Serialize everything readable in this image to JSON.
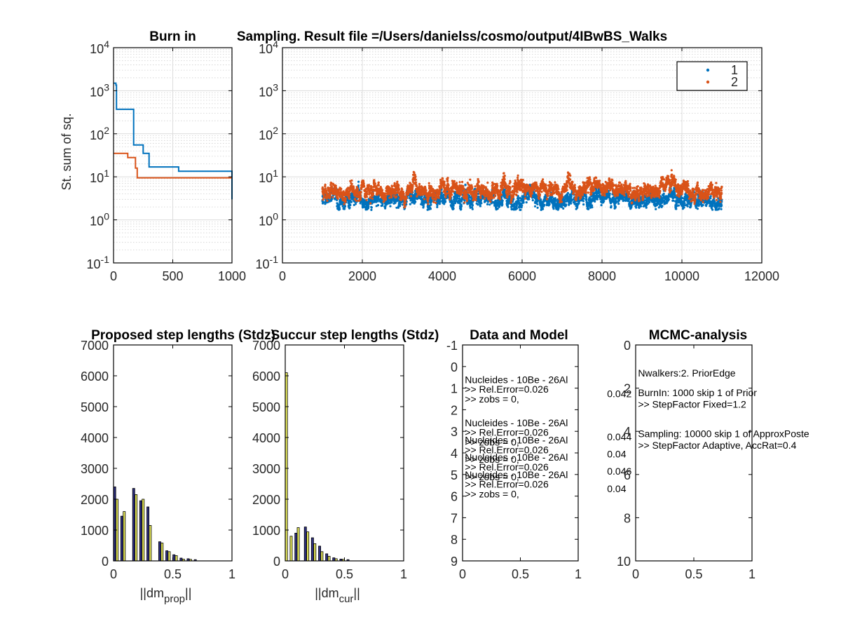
{
  "chart_data": [
    {
      "type": "line",
      "title": "Burn in",
      "ylabel": "St. sum of sq.",
      "xlim": [
        0,
        1000
      ],
      "ylim": [
        0.1,
        10000
      ],
      "yscale": "log",
      "grid": true,
      "x_ticks": [
        "0",
        "500",
        "1000"
      ],
      "y_ticks": [
        {
          "base": "10",
          "exp": "-1"
        },
        {
          "base": "10",
          "exp": "0"
        },
        {
          "base": "10",
          "exp": "1"
        },
        {
          "base": "10",
          "exp": "2"
        },
        {
          "base": "10",
          "exp": "3"
        },
        {
          "base": "10",
          "exp": "4"
        }
      ],
      "series": [
        {
          "color": "#0072BD",
          "points": [
            [
              0,
              1500
            ],
            [
              20,
              1500
            ],
            [
              20,
              1350
            ],
            [
              25,
              1350
            ],
            [
              25,
              370
            ],
            [
              170,
              370
            ],
            [
              170,
              55
            ],
            [
              250,
              55
            ],
            [
              250,
              35
            ],
            [
              300,
              35
            ],
            [
              300,
              17
            ],
            [
              550,
              17
            ],
            [
              550,
              13.5
            ],
            [
              1000,
              13.5
            ],
            [
              1000,
              3
            ]
          ]
        },
        {
          "color": "#D95319",
          "points": [
            [
              0,
              35
            ],
            [
              120,
              35
            ],
            [
              120,
              28
            ],
            [
              185,
              28
            ],
            [
              185,
              16
            ],
            [
              200,
              16
            ],
            [
              200,
              9.5
            ],
            [
              1000,
              9.5
            ]
          ]
        }
      ]
    },
    {
      "type": "scatter",
      "title": "Sampling. Result file =/Users/danielss/cosmo/output/4IBwBS_Walks",
      "xlim": [
        0,
        12000
      ],
      "ylim": [
        0.1,
        10000
      ],
      "yscale": "log",
      "grid": true,
      "legend": "top-right",
      "x_ticks": [
        "0",
        "2000",
        "4000",
        "6000",
        "8000",
        "10000",
        "12000"
      ],
      "y_ticks": [
        {
          "base": "10",
          "exp": "-1"
        },
        {
          "base": "10",
          "exp": "0"
        },
        {
          "base": "10",
          "exp": "1"
        },
        {
          "base": "10",
          "exp": "2"
        },
        {
          "base": "10",
          "exp": "3"
        },
        {
          "base": "10",
          "exp": "4"
        }
      ],
      "x_range": [
        1000,
        11000
      ],
      "series": [
        {
          "name": "1",
          "color": "#0072BD",
          "center_anchors": [
            [
              1000,
              3.0
            ],
            [
              1500,
              2.9
            ],
            [
              2000,
              3.0
            ],
            [
              2500,
              2.8
            ],
            [
              3000,
              2.9
            ],
            [
              3500,
              3.5
            ],
            [
              4000,
              3.3
            ],
            [
              4500,
              3.1
            ],
            [
              5000,
              3.0
            ],
            [
              5500,
              3.2
            ],
            [
              6000,
              3.0
            ],
            [
              6500,
              3.0
            ],
            [
              7000,
              3.3
            ],
            [
              7500,
              3.1
            ],
            [
              8000,
              3.4
            ],
            [
              8500,
              3.0
            ],
            [
              9000,
              3.2
            ],
            [
              9500,
              2.9
            ],
            [
              10000,
              3.2
            ],
            [
              10500,
              3.0
            ],
            [
              11000,
              3.0
            ]
          ],
          "spread_log10": 0.17,
          "max_y": 17
        },
        {
          "name": "2",
          "color": "#D95319",
          "center_anchors": [
            [
              1000,
              5.0
            ],
            [
              1500,
              4.8
            ],
            [
              2000,
              4.5
            ],
            [
              2500,
              3.8
            ],
            [
              3000,
              4.4
            ],
            [
              3500,
              4.8
            ],
            [
              4000,
              5.0
            ],
            [
              4500,
              4.3
            ],
            [
              5000,
              4.5
            ],
            [
              5500,
              5.0
            ],
            [
              6000,
              6.5
            ],
            [
              6500,
              6.0
            ],
            [
              7000,
              4.5
            ],
            [
              7500,
              4.6
            ],
            [
              8000,
              5.5
            ],
            [
              8500,
              4.8
            ],
            [
              9000,
              4.7
            ],
            [
              9500,
              5.8
            ],
            [
              10000,
              5.0
            ],
            [
              10500,
              4.3
            ],
            [
              11000,
              4.5
            ]
          ],
          "spread_log10": 0.16,
          "max_y": 22
        }
      ]
    },
    {
      "type": "bar",
      "title": "Proposed step lengths (Stdz)",
      "xlabel_main": "||dm",
      "xlabel_sub": "prop",
      "xlabel_end": "||",
      "xlim": [
        0,
        1
      ],
      "ylim": [
        0,
        7000
      ],
      "x_ticks": [
        "0",
        "0.5",
        "1"
      ],
      "y_ticks": [
        "0",
        "1000",
        "2000",
        "3000",
        "4000",
        "5000",
        "6000",
        "7000"
      ],
      "bin_width": 0.02,
      "bin_centers": [
        0.01,
        0.03,
        0.05,
        0.07,
        0.09,
        0.11,
        0.13,
        0.15,
        0.17,
        0.19,
        0.21,
        0.23,
        0.25,
        0.27,
        0.29,
        0.31,
        0.33,
        0.35,
        0.37,
        0.39,
        0.41,
        0.43,
        0.45,
        0.47,
        0.49,
        0.51,
        0.53,
        0.55,
        0.57,
        0.59,
        0.61,
        0.63,
        0.65,
        0.67,
        0.69
      ],
      "series": [
        {
          "color": "#2D2F7E",
          "values": [
            2400,
            0,
            0,
            1450,
            0,
            0,
            0,
            0,
            2350,
            0,
            0,
            1950,
            0,
            0,
            1750,
            0,
            0,
            0,
            0,
            620,
            0,
            0,
            330,
            0,
            0,
            200,
            0,
            0,
            90,
            0,
            0,
            70,
            0,
            0,
            40
          ]
        },
        {
          "color": "#E6E85C",
          "values": [
            0,
            2000,
            0,
            0,
            1600,
            0,
            0,
            0,
            0,
            2150,
            0,
            0,
            2000,
            0,
            0,
            1150,
            0,
            0,
            0,
            0,
            580,
            0,
            0,
            300,
            0,
            0,
            170,
            0,
            0,
            60,
            0,
            0,
            50,
            0,
            0
          ]
        }
      ]
    },
    {
      "type": "bar",
      "title": "Succur step lengths (Stdz)",
      "xlabel_main": "||dm",
      "xlabel_sub": "cur",
      "xlabel_end": "||",
      "xlim": [
        0,
        1
      ],
      "ylim": [
        0,
        7000
      ],
      "x_ticks": [
        "0",
        "0.5",
        "1"
      ],
      "y_ticks": [
        "0",
        "1000",
        "2000",
        "3000",
        "4000",
        "5000",
        "6000",
        "7000"
      ],
      "bin_width": 0.02,
      "bin_centers": [
        0.01,
        0.03,
        0.05,
        0.07,
        0.09,
        0.11,
        0.13,
        0.15,
        0.17,
        0.19,
        0.21,
        0.23,
        0.25,
        0.27,
        0.29,
        0.31,
        0.33,
        0.35,
        0.37,
        0.39,
        0.41,
        0.43,
        0.45,
        0.47,
        0.49,
        0.51,
        0.53,
        0.55,
        0.57,
        0.59
      ],
      "series": [
        {
          "color": "#2D2F7E",
          "values": [
            0,
            0,
            0,
            0,
            900,
            0,
            0,
            0,
            1100,
            0,
            0,
            750,
            0,
            0,
            480,
            0,
            0,
            230,
            0,
            0,
            100,
            0,
            0,
            60,
            0,
            0,
            40,
            0,
            0,
            0
          ]
        },
        {
          "color": "#E6E85C",
          "values": [
            6100,
            0,
            800,
            0,
            0,
            1080,
            0,
            0,
            0,
            940,
            0,
            0,
            560,
            0,
            0,
            300,
            0,
            0,
            150,
            0,
            0,
            70,
            0,
            0,
            50,
            0,
            0,
            0,
            0,
            0
          ]
        }
      ]
    },
    {
      "type": "table",
      "title": "Data and Model",
      "xlim": [
        0,
        1
      ],
      "ylim": [
        -1,
        9
      ],
      "y_reversed": true,
      "x_ticks": [
        "0",
        "0.5",
        "1"
      ],
      "y_ticks": [
        "-1",
        "0",
        "1",
        "2",
        "3",
        "4",
        "5",
        "6",
        "7",
        "8",
        "9"
      ],
      "text_lines": [
        {
          "x": 0.02,
          "y": 0.6,
          "text": "Nucleides - 10Be - 26Al"
        },
        {
          "x": 0.02,
          "y": 1.05,
          "text": ">>    Rel.Error=0.026"
        },
        {
          "x": 0.02,
          "y": 1.5,
          "text": ">>    zobs = 0,"
        },
        {
          "x": 0.02,
          "y": 2.6,
          "text": "Nucleides - 10Be - 26Al"
        },
        {
          "x": 0.02,
          "y": 3.05,
          "text": ">>    Rel.Error=0.026"
        },
        {
          "x": 0.02,
          "y": 3.5,
          "text": ">>    zobs = 0,"
        },
        {
          "x": 0.02,
          "y": 3.4,
          "text": "Nucleides - 10Be - 26Al"
        },
        {
          "x": 0.02,
          "y": 3.85,
          "text": ">>    Rel.Error=0.026"
        },
        {
          "x": 0.02,
          "y": 4.3,
          "text": ">>    zobs = 0,"
        },
        {
          "x": 0.02,
          "y": 4.2,
          "text": "Nucleides - 10Be - 26Al"
        },
        {
          "x": 0.02,
          "y": 4.65,
          "text": ">>    Rel.Error=0.026"
        },
        {
          "x": 0.02,
          "y": 5.1,
          "text": ">>    zobs = 0,"
        },
        {
          "x": 0.02,
          "y": 5.0,
          "text": "Nucleides - 10Be - 26Al"
        },
        {
          "x": 0.02,
          "y": 5.45,
          "text": ">>    Rel.Error=0.026"
        },
        {
          "x": 0.02,
          "y": 5.9,
          "text": ">>    zobs = 0,"
        },
        {
          "x": 1.25,
          "y": 1.25,
          "text": "0.042"
        },
        {
          "x": 1.25,
          "y": 3.25,
          "text": "0.044"
        },
        {
          "x": 1.25,
          "y": 4.05,
          "text": "0.04"
        },
        {
          "x": 1.25,
          "y": 4.85,
          "text": "0.046"
        },
        {
          "x": 1.25,
          "y": 5.65,
          "text": "0.04"
        }
      ]
    },
    {
      "type": "table",
      "title": "MCMC-analysis",
      "xlim": [
        0,
        1
      ],
      "ylim": [
        0,
        10
      ],
      "y_reversed": true,
      "x_ticks": [
        "0",
        "0.5",
        "1"
      ],
      "y_ticks": [
        "0",
        "2",
        "4",
        "6",
        "8",
        "10"
      ],
      "text_lines": [
        {
          "x": 0.02,
          "y": 1.3,
          "text": "Nwalkers:2. PriorEdge"
        },
        {
          "x": 0.02,
          "y": 2.2,
          "text": "BurnIn: 1000 skip 1 of Prior"
        },
        {
          "x": 0.02,
          "y": 2.75,
          "text": ">>    StepFactor Fixed=1.2"
        },
        {
          "x": 0.02,
          "y": 4.1,
          "text": "Sampling: 10000 skip 1 of ApproxPoste"
        },
        {
          "x": 0.02,
          "y": 4.65,
          "text": ">>    StepFactor Adaptive, AccRat=0.4"
        }
      ]
    }
  ]
}
